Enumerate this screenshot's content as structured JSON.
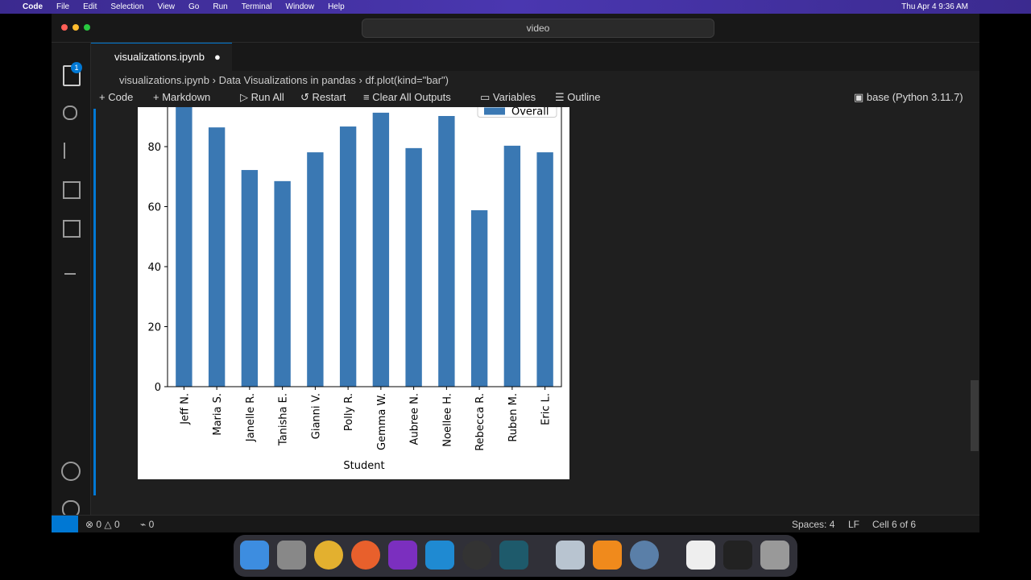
{
  "menubar": {
    "app": "Code",
    "menus": [
      "File",
      "Edit",
      "Selection",
      "View",
      "Go",
      "Run",
      "Terminal",
      "Window",
      "Help"
    ],
    "clock": "Thu Apr 4  9:36 AM"
  },
  "titlebar": {
    "search": "video"
  },
  "activity": {
    "badge": "1"
  },
  "tab": {
    "title": "visualizations.ipynb"
  },
  "breadcrumbs": [
    "visualizations.ipynb",
    "Data Visualizations in pandas",
    "df.plot(kind=\"bar\")"
  ],
  "toolbar": {
    "code": "Code",
    "markdown": "Markdown",
    "run_all": "Run All",
    "restart": "Restart",
    "clear": "Clear All Outputs",
    "variables": "Variables",
    "outline": "Outline",
    "kernel": "base (Python 3.11.7)"
  },
  "status": {
    "errors": "0",
    "warnings": "0",
    "ports": "0",
    "spaces": "Spaces: 4",
    "eol": "LF",
    "cell": "Cell 6 of 6"
  },
  "chart_data": {
    "type": "bar",
    "x_label": "Student",
    "categories": [
      "Jeff N.",
      "Maria S.",
      "Janelle R.",
      "Tanisha E.",
      "Gianni V.",
      "Polly R.",
      "Gemma W.",
      "Aubree N.",
      "Noellee H.",
      "Rebecca R.",
      "Ruben M.",
      "Eric L."
    ],
    "series": [
      {
        "name": "Overall",
        "color": "#3a78b3",
        "values": [
          96,
          86.4,
          72.2,
          68.5,
          78.1,
          86.7,
          91.3,
          79.5,
          90.2,
          58.8,
          80.3,
          78.1
        ]
      }
    ],
    "ylim": [
      0,
      100
    ],
    "yticks": [
      0,
      20,
      40,
      60,
      80
    ],
    "legend": "upper right"
  }
}
